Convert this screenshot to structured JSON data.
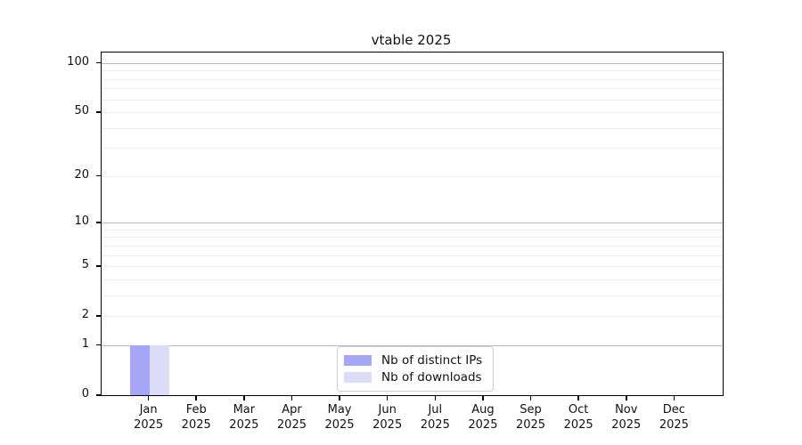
{
  "window": {
    "background": "#ffffff"
  },
  "chart_data": {
    "type": "bar",
    "title": "vtable 2025",
    "categories": [
      "Jan",
      "Feb",
      "Mar",
      "Apr",
      "May",
      "Jun",
      "Jul",
      "Aug",
      "Sep",
      "Oct",
      "Nov",
      "Dec"
    ],
    "x_year_label": "2025",
    "series": [
      {
        "name": "Nb of distinct IPs",
        "color": "#a6a6f6",
        "values": [
          1,
          0,
          0,
          0,
          0,
          0,
          0,
          0,
          0,
          0,
          0,
          0
        ]
      },
      {
        "name": "Nb of downloads",
        "color": "#dcdcf9",
        "values": [
          1,
          0,
          0,
          0,
          0,
          0,
          0,
          0,
          0,
          0,
          0,
          0
        ]
      }
    ],
    "y_axis": {
      "scale": "log1p",
      "tick_values": [
        0,
        1,
        2,
        5,
        10,
        20,
        50,
        100
      ],
      "tick_labels": [
        "0",
        "1",
        "2",
        "5",
        "10",
        "20",
        "50",
        "100"
      ],
      "major_gridlines": [
        1,
        10,
        100
      ],
      "minor_gridlines": [
        2,
        3,
        4,
        5,
        6,
        7,
        8,
        9,
        20,
        30,
        40,
        50,
        60,
        70,
        80,
        90
      ],
      "max": 116
    },
    "legend": {
      "position": "lower center"
    },
    "grid": true,
    "colors": {
      "axis": "#000000",
      "major_grid": "#b9b9b9",
      "minor_grid": "#ececec",
      "legend_border": "#cccccc"
    }
  }
}
